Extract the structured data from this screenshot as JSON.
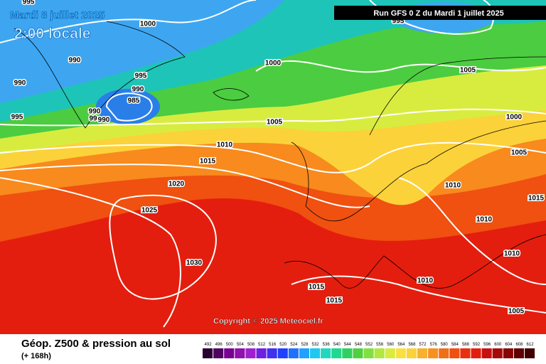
{
  "header": {
    "date": "Mardi 8 juillet 2025",
    "time": "2:00 locale",
    "run": "Run GFS 0 Z du Mardi 1 juillet 2025",
    "copyright": "Copyright © 2025 Meteociel.fr"
  },
  "footer": {
    "title": "Géop. Z500 & pression au sol",
    "lead": "(+ 168h)",
    "scale": [
      492,
      496,
      500,
      504,
      508,
      512,
      516,
      520,
      524,
      528,
      532,
      536,
      540,
      544,
      548,
      552,
      556,
      560,
      564,
      568,
      572,
      576,
      580,
      584,
      588,
      592,
      596,
      600,
      604,
      608,
      612
    ]
  },
  "isobar_labels": [
    "995",
    "1000",
    "995",
    "990",
    "990",
    "995",
    "990",
    "985",
    "990",
    "99",
    "990",
    "995",
    "1000",
    "1005",
    "1000",
    "1005",
    "1010",
    "1015",
    "1005",
    "1020",
    "1010",
    "1025",
    "1015",
    "1010",
    "1010",
    "1030",
    "1010",
    "1015",
    "1015",
    "1005"
  ]
}
